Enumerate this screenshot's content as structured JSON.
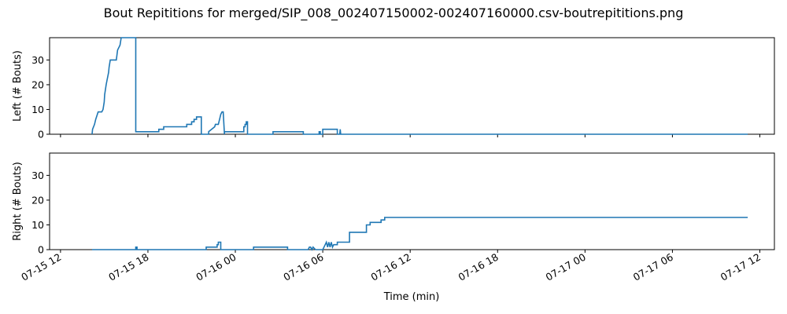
{
  "title": "Bout Repititions for merged/SIP_008_002407150002-002407160000.csv-boutrepititions.png",
  "colors": {
    "series": "#1f77b4"
  },
  "chart_data": [
    {
      "type": "line",
      "panel": "top",
      "title": "",
      "xlabel": "",
      "ylabel": "Left (# Bouts)",
      "ylim": [
        0,
        39
      ],
      "yticks": [
        0,
        10,
        20,
        30
      ],
      "xlim": [
        "07-15 11:15",
        "07-17 13:00"
      ],
      "xtick_labels": [],
      "grid": false,
      "series": [
        {
          "x": [
            "07-15 14:10",
            "07-15 14:12",
            "07-15 14:20",
            "07-15 14:25",
            "07-15 14:35",
            "07-15 14:50",
            "07-15 14:55",
            "07-15 15:00",
            "07-15 15:02",
            "07-15 15:08",
            "07-15 15:12",
            "07-15 15:18",
            "07-15 15:20",
            "07-15 15:25",
            "07-15 15:50",
            "07-15 15:55",
            "07-15 16:05",
            "07-15 16:10",
            "07-15 16:15",
            "07-15 17:10",
            "07-15 17:10",
            "07-15 18:45",
            "07-15 18:45",
            "07-15 19:05",
            "07-15 19:05",
            "07-15 19:40",
            "07-15 19:40",
            "07-15 20:40",
            "07-15 20:40",
            "07-15 21:00",
            "07-15 21:00",
            "07-15 21:10",
            "07-15 21:10",
            "07-15 21:20",
            "07-15 21:20",
            "07-15 21:40",
            "07-15 21:40",
            "07-15 22:10",
            "07-15 22:10",
            "07-15 22:35",
            "07-15 22:38",
            "07-15 22:50",
            "07-15 22:55",
            "07-15 23:00",
            "07-15 23:05",
            "07-15 23:10",
            "07-15 23:15",
            "07-15 23:15",
            "07-16 00:35",
            "07-16 00:35",
            "07-16 00:40",
            "07-16 00:40",
            "07-16 00:45",
            "07-16 00:45",
            "07-16 00:50",
            "07-16 00:50",
            "07-16 02:35",
            "07-16 02:35",
            "07-16 04:40",
            "07-16 04:40",
            "07-16 05:45",
            "07-16 05:45",
            "07-16 05:50",
            "07-16 05:50",
            "07-16 06:00",
            "07-16 06:00",
            "07-16 07:00",
            "07-16 07:00",
            "07-16 07:10",
            "07-16 07:12",
            "07-16 07:14",
            "07-16 07:14",
            "07-17 11:10"
          ],
          "y": [
            0,
            2,
            4,
            6,
            9,
            9,
            10,
            13,
            16,
            20,
            22,
            25,
            27,
            30,
            30,
            34,
            36,
            39,
            39,
            39,
            1,
            1,
            2,
            2,
            3,
            3,
            3,
            3,
            4,
            4,
            5,
            5,
            6,
            6,
            7,
            7,
            0,
            0,
            1,
            3,
            4,
            4,
            6,
            8,
            9,
            9,
            0,
            1,
            1,
            3,
            3,
            4,
            4,
            5,
            5,
            0,
            0,
            1,
            1,
            0,
            0,
            1,
            1,
            0,
            0,
            2,
            2,
            0,
            0,
            2,
            0,
            0,
            0
          ]
        }
      ]
    },
    {
      "type": "line",
      "panel": "bottom",
      "title": "",
      "xlabel": "Time (min)",
      "ylabel": "Right (# Bouts)",
      "ylim": [
        0,
        39
      ],
      "yticks": [
        0,
        10,
        20,
        30
      ],
      "xlim": [
        "07-15 11:15",
        "07-17 13:00"
      ],
      "xtick_labels": [
        "07-15 12",
        "07-15 18",
        "07-16 00",
        "07-16 06",
        "07-16 12",
        "07-16 18",
        "07-17 00",
        "07-17 06",
        "07-17 12"
      ],
      "grid": false,
      "series": [
        {
          "x": [
            "07-15 14:10",
            "07-15 17:10",
            "07-15 17:10",
            "07-15 17:15",
            "07-15 17:15",
            "07-15 22:00",
            "07-15 22:00",
            "07-15 22:45",
            "07-15 22:45",
            "07-15 22:50",
            "07-15 22:50",
            "07-15 23:00",
            "07-15 23:00",
            "07-16 01:15",
            "07-16 01:15",
            "07-16 03:35",
            "07-16 03:35",
            "07-16 03:40",
            "07-16 03:40",
            "07-16 05:00",
            "07-16 05:05",
            "07-16 05:10",
            "07-16 05:15",
            "07-16 05:20",
            "07-16 05:30",
            "07-16 05:50",
            "07-16 05:55",
            "07-16 06:00",
            "07-16 06:05",
            "07-16 06:10",
            "07-16 06:15",
            "07-16 06:20",
            "07-16 06:25",
            "07-16 06:30",
            "07-16 06:35",
            "07-16 06:40",
            "07-16 06:45",
            "07-16 06:50",
            "07-16 07:00",
            "07-16 07:00",
            "07-16 07:10",
            "07-16 07:10",
            "07-16 07:50",
            "07-16 07:50",
            "07-16 08:20",
            "07-16 08:20",
            "07-16 09:00",
            "07-16 09:00",
            "07-16 09:10",
            "07-16 09:10",
            "07-16 09:15",
            "07-16 09:15",
            "07-16 10:00",
            "07-16 10:00",
            "07-16 10:15",
            "07-16 10:15",
            "07-17 11:10"
          ],
          "y": [
            0,
            0,
            1,
            1,
            0,
            0,
            1,
            1,
            2,
            2,
            3,
            3,
            0,
            0,
            1,
            1,
            0,
            0,
            0,
            0,
            1,
            1,
            0,
            1,
            0,
            0,
            0,
            0,
            1,
            2,
            3,
            1,
            3,
            1,
            3,
            1,
            2,
            2,
            2,
            3,
            3,
            3,
            3,
            7,
            7,
            7,
            7,
            10,
            10,
            10,
            10,
            11,
            11,
            12,
            12,
            13,
            13
          ]
        }
      ]
    }
  ]
}
